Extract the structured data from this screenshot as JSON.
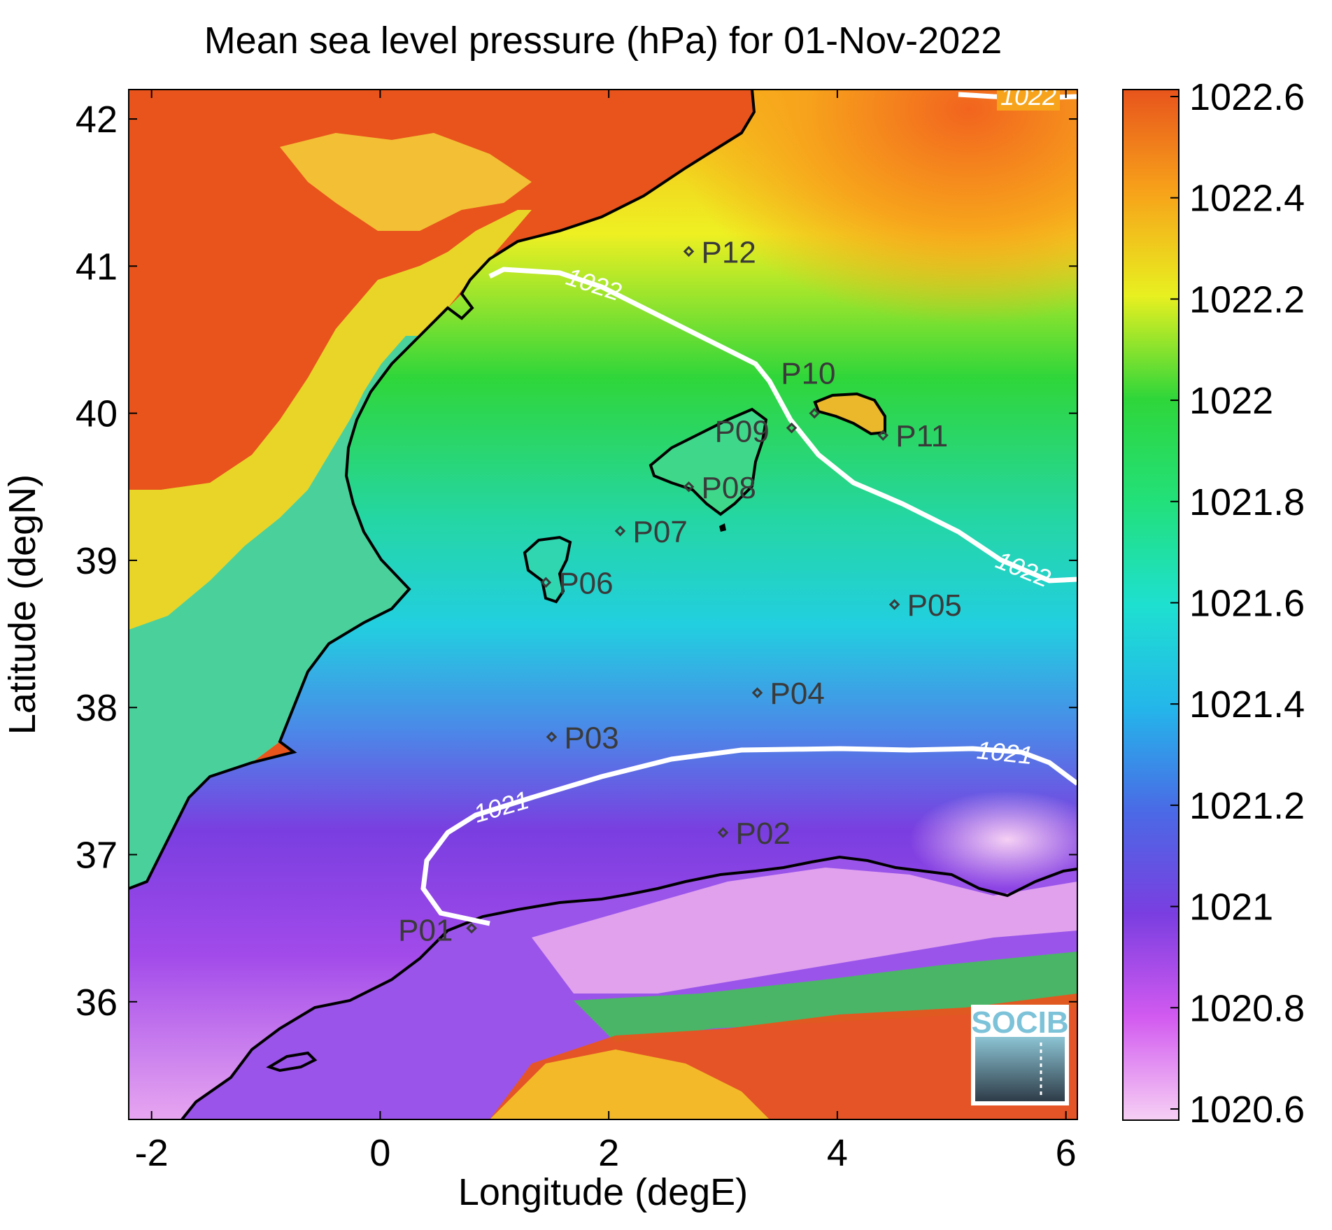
{
  "map": {
    "title": "Mean sea level pressure (hPa) for 01-Nov-2022",
    "xlabel": "Longitude (degE)",
    "ylabel": "Latitude (degN)",
    "xlim": [
      -2.2,
      6.1
    ],
    "ylim": [
      35.2,
      42.2
    ],
    "xticks": [
      "-2",
      "0",
      "2",
      "4",
      "6"
    ],
    "yticks": [
      "36",
      "37",
      "38",
      "39",
      "40",
      "41",
      "42"
    ],
    "colorbar": {
      "range": [
        1020.6,
        1022.6
      ],
      "ticks": [
        "1020.6",
        "1020.8",
        "1021",
        "1021.2",
        "1021.4",
        "1021.6",
        "1021.8",
        "1022",
        "1022.2",
        "1022.4",
        "1022.6"
      ]
    },
    "contours": [
      {
        "value": "1022",
        "labels": [
          "1022",
          "1022",
          "1022"
        ]
      },
      {
        "value": "1021",
        "labels": [
          "1021",
          "1021"
        ]
      }
    ],
    "stations": [
      {
        "id": "P01",
        "lon": 0.8,
        "lat": 36.5
      },
      {
        "id": "P02",
        "lon": 3.0,
        "lat": 37.15
      },
      {
        "id": "P03",
        "lon": 1.5,
        "lat": 37.8
      },
      {
        "id": "P04",
        "lon": 3.3,
        "lat": 38.1
      },
      {
        "id": "P05",
        "lon": 4.5,
        "lat": 38.7
      },
      {
        "id": "P06",
        "lon": 1.45,
        "lat": 38.85
      },
      {
        "id": "P07",
        "lon": 2.1,
        "lat": 39.2
      },
      {
        "id": "P08",
        "lon": 2.7,
        "lat": 39.5
      },
      {
        "id": "P09",
        "lon": 3.6,
        "lat": 39.9
      },
      {
        "id": "P10",
        "lon": 3.8,
        "lat": 40.0
      },
      {
        "id": "P11",
        "lon": 4.4,
        "lat": 39.85
      },
      {
        "id": "P12",
        "lon": 2.7,
        "lat": 41.1
      }
    ],
    "logo": "SOCIB",
    "colors": {
      "high": "#e8541c",
      "mid": "#2fd63a",
      "low": "#7a3ee0",
      "lowest": "#f4c8f0"
    }
  }
}
